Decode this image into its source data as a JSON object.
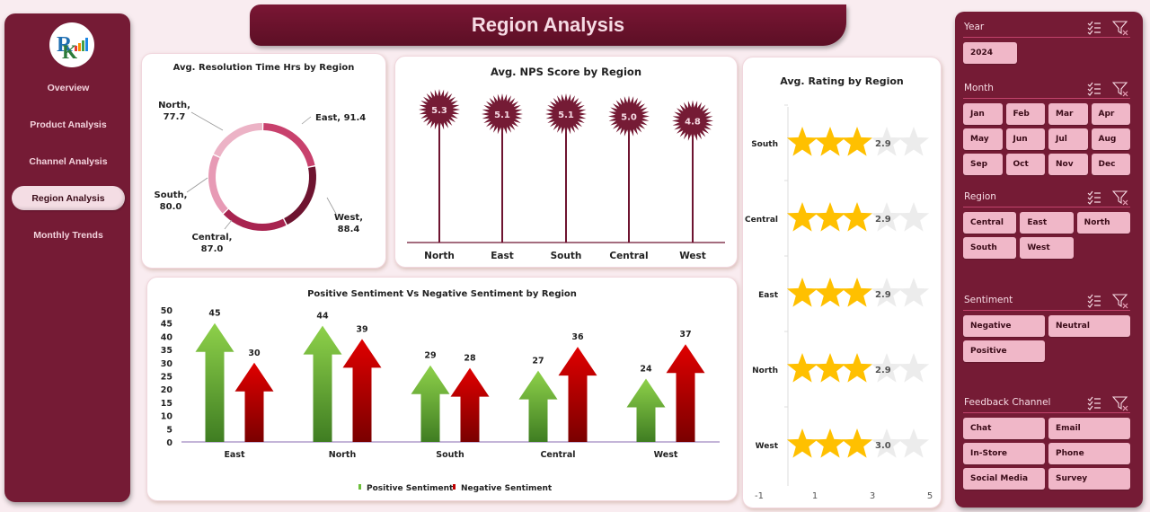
{
  "nav": {
    "logo": "RK logo",
    "items": [
      {
        "label": "Overview",
        "active": false
      },
      {
        "label": "Product Analysis",
        "active": false
      },
      {
        "label": "Channel Analysis",
        "active": false
      },
      {
        "label": "Region Analysis",
        "active": true
      },
      {
        "label": "Monthly Trends",
        "active": false
      }
    ]
  },
  "header": {
    "title": "Region Analysis"
  },
  "colors": {
    "maroon": "#751b35",
    "header": "#6a1330",
    "background": "#f9ecf0",
    "chip": "#f0b7c8",
    "positive_green": "#6cbf3a",
    "negative_red": "#c00000",
    "star_gold": "#ffc000",
    "star_empty": "#ececec"
  },
  "chart_data": [
    {
      "id": "resolution",
      "type": "pie",
      "subtype": "donut",
      "title": "Avg. Resolution Time Hrs by Region",
      "categories": [
        "East",
        "West",
        "Central",
        "South",
        "North"
      ],
      "values": [
        91.4,
        88.4,
        87.0,
        80.0,
        77.7
      ],
      "labels": [
        "East, 91.4",
        "West, 88.4",
        "Central, 87.0",
        "South, 80.0",
        "North, 77.7"
      ],
      "colors": [
        "#c8416d",
        "#6e1430",
        "#a82450",
        "#e79ab5",
        "#ecb3c6"
      ],
      "legend": "none (data labels with leader lines)"
    },
    {
      "id": "nps",
      "type": "bar",
      "subtype": "lollipop with starburst markers",
      "title": "Avg. NPS Score by Region",
      "categories": [
        "North",
        "East",
        "South",
        "Central",
        "West"
      ],
      "values": [
        5.3,
        5.1,
        5.1,
        5.0,
        4.8
      ],
      "value_labels": [
        "5.3",
        "5.1",
        "5.1",
        "5.0",
        "4.8"
      ],
      "grid": false,
      "legend": "none"
    },
    {
      "id": "rating",
      "type": "bar",
      "subtype": "horizontal star rating",
      "title": "Avg. Rating by Region",
      "categories": [
        "South",
        "Central",
        "East",
        "North",
        "West"
      ],
      "values": [
        2.9,
        2.9,
        2.9,
        2.9,
        3.0
      ],
      "value_labels": [
        "2.9",
        "2.9",
        "2.9",
        "2.9",
        "3.0"
      ],
      "max_stars": 5,
      "x_ticks": [
        "-1",
        "1",
        "3",
        "5"
      ],
      "xlim": [
        -1,
        5
      ]
    },
    {
      "id": "sentiment",
      "type": "bar",
      "subtype": "clustered arrow columns",
      "title": "Positive Sentiment Vs Negative Sentiment by Region",
      "categories": [
        "East",
        "North",
        "South",
        "Central",
        "West"
      ],
      "series": [
        {
          "name": "Positive Sentiment",
          "values": [
            45,
            44,
            29,
            27,
            24
          ],
          "color": "#6cbf3a"
        },
        {
          "name": "Negative Sentiment",
          "values": [
            30,
            39,
            28,
            36,
            37
          ],
          "color": "#c00000"
        }
      ],
      "y_ticks": [
        "0",
        "5",
        "10",
        "15",
        "20",
        "25",
        "30",
        "35",
        "40",
        "45",
        "50"
      ],
      "ylim": [
        0,
        50
      ],
      "legend_position": "bottom"
    }
  ],
  "slicers": [
    {
      "title": "Year",
      "columns": 1,
      "items": [
        "2024"
      ]
    },
    {
      "title": "Month",
      "columns": 4,
      "items": [
        "Jan",
        "Feb",
        "Mar",
        "Apr",
        "May",
        "Jun",
        "Jul",
        "Aug",
        "Sep",
        "Oct",
        "Nov",
        "Dec"
      ]
    },
    {
      "title": "Region",
      "columns": 3,
      "items": [
        "Central",
        "East",
        "North",
        "South",
        "West"
      ]
    },
    {
      "title": "Sentiment",
      "columns": 2,
      "items": [
        "Negative",
        "Neutral",
        "Positive"
      ]
    },
    {
      "title": "Feedback Channel",
      "columns": 2,
      "items": [
        "Chat",
        "Email",
        "In-Store",
        "Phone",
        "Social Media",
        "Survey"
      ]
    }
  ],
  "slicer_icons": {
    "multi_select": "multi-select-icon",
    "clear_filter": "clear-filter-icon"
  }
}
